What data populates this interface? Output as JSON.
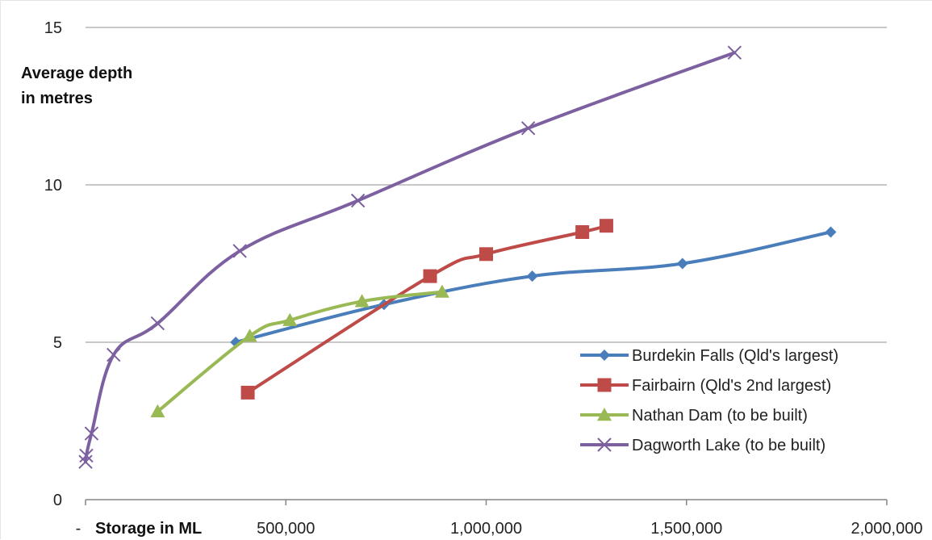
{
  "chart_data": {
    "type": "line",
    "title": "",
    "ylabel": [
      "Average depth",
      "in metres"
    ],
    "xlabel": "Storage in ML",
    "xlim": [
      0,
      2000000
    ],
    "ylim": [
      0,
      15
    ],
    "x_ticks": [
      {
        "value": 0,
        "label": "-"
      },
      {
        "value": 500000,
        "label": "500,000"
      },
      {
        "value": 1000000,
        "label": "1,000,000"
      },
      {
        "value": 1500000,
        "label": "1,500,000"
      },
      {
        "value": 2000000,
        "label": "2,000,000"
      }
    ],
    "y_ticks": [
      {
        "value": 0,
        "label": "0"
      },
      {
        "value": 5,
        "label": "5"
      },
      {
        "value": 10,
        "label": "10"
      },
      {
        "value": 15,
        "label": "15"
      }
    ],
    "grid": "horizontal",
    "legend_position": "bottom-right",
    "series": [
      {
        "name": "Burdekin Falls (Qld's largest)",
        "color": "#4a7ebb",
        "marker": "diamond",
        "points": [
          {
            "x": 375000,
            "y": 5.0
          },
          {
            "x": 745000,
            "y": 6.2
          },
          {
            "x": 1115000,
            "y": 7.1
          },
          {
            "x": 1490000,
            "y": 7.5
          },
          {
            "x": 1860000,
            "y": 8.5
          }
        ]
      },
      {
        "name": "Fairbairn (Qld's 2nd largest)",
        "color": "#be4b48",
        "marker": "square",
        "points": [
          {
            "x": 405000,
            "y": 3.4
          },
          {
            "x": 860000,
            "y": 7.1
          },
          {
            "x": 1000000,
            "y": 7.8
          },
          {
            "x": 1240000,
            "y": 8.5
          },
          {
            "x": 1300000,
            "y": 8.7
          }
        ]
      },
      {
        "name": "Nathan Dam (to be built)",
        "color": "#98b954",
        "marker": "triangle",
        "points": [
          {
            "x": 180000,
            "y": 2.8
          },
          {
            "x": 410000,
            "y": 5.2
          },
          {
            "x": 510000,
            "y": 5.7
          },
          {
            "x": 690000,
            "y": 6.3
          },
          {
            "x": 890000,
            "y": 6.6
          }
        ]
      },
      {
        "name": "Dagworth Lake (to be built)",
        "color": "#7d60a0",
        "marker": "x",
        "points": [
          {
            "x": 0,
            "y": 1.2
          },
          {
            "x": 2000,
            "y": 1.4
          },
          {
            "x": 15000,
            "y": 2.1
          },
          {
            "x": 70000,
            "y": 4.6
          },
          {
            "x": 180000,
            "y": 5.6
          },
          {
            "x": 385000,
            "y": 7.9
          },
          {
            "x": 680000,
            "y": 9.5
          },
          {
            "x": 1105000,
            "y": 11.8
          },
          {
            "x": 1620000,
            "y": 14.2
          }
        ]
      }
    ]
  }
}
